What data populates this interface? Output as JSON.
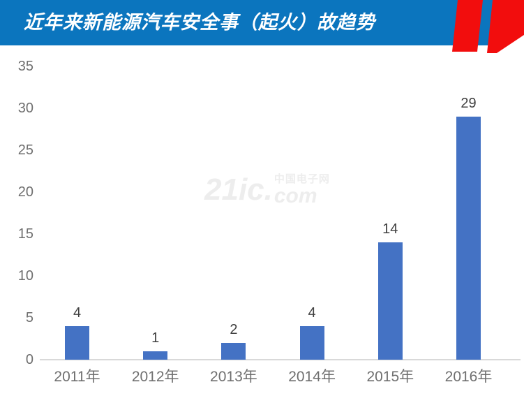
{
  "header": {
    "title": "近年来新能源汽车安全事（起火）故趋势",
    "colors": {
      "banner_blue": "#0b75be",
      "stripe_red": "#f20d0d",
      "title_text": "#ffffff"
    }
  },
  "watermark": {
    "text_main": "21ic.",
    "text_cn": "中国电子网",
    "text_com": "com"
  },
  "chart_data": {
    "type": "bar",
    "title": "近年来新能源汽车安全事（起火）故趋势",
    "categories": [
      "2011年",
      "2012年",
      "2013年",
      "2014年",
      "2015年",
      "2016年"
    ],
    "values": [
      4,
      1,
      2,
      4,
      14,
      29
    ],
    "xlabel": "",
    "ylabel": "",
    "ylim": [
      0,
      35
    ],
    "yticks": [
      0,
      5,
      10,
      15,
      20,
      25,
      30,
      35
    ],
    "bar_color": "#4472c4",
    "value_label_color": "#404040",
    "tick_label_color": "#6f6f6f",
    "axis_line_color": "#d9d9d9",
    "grid": false,
    "legend": null
  }
}
